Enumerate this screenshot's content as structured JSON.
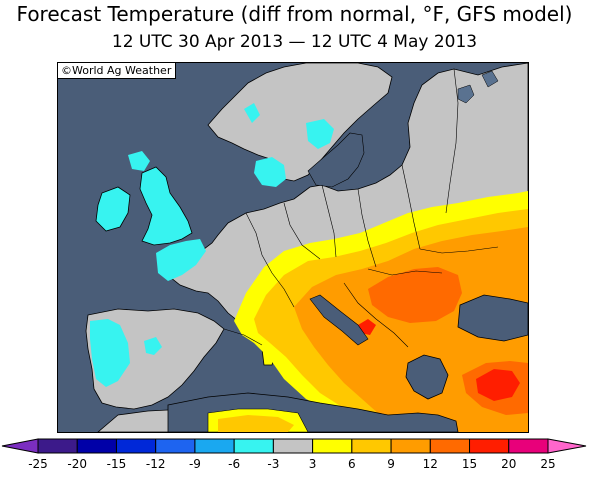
{
  "header": {
    "title": "Forecast Temperature (diff from normal, °F, GFS model)",
    "subtitle": "12 UTC 30 Apr 2013 — 12 UTC 4 May 2013"
  },
  "map": {
    "credit": "©World Ag Weather",
    "colors": {
      "water": "#4a5d78",
      "lake": "#5a7290",
      "near_normal": "#c4c4c4",
      "cyan_-3_-6": "#37f3f0",
      "yellow_3_6": "#ffff00",
      "gold_6_9": "#ffc800",
      "orange_9_12": "#ff9c00",
      "deep_orange_12_15": "#ff6a00",
      "red_15_20": "#ff1e00"
    }
  },
  "legend": {
    "ticks": [
      "-25",
      "-20",
      "-15",
      "-12",
      "-9",
      "-6",
      "-3",
      "3",
      "6",
      "9",
      "12",
      "15",
      "20",
      "25"
    ],
    "colors": [
      "#3c1a8a",
      "#0000a8",
      "#0028d8",
      "#1e64f0",
      "#1aa8f0",
      "#37f3f0",
      "#c4c4c4",
      "#ffff00",
      "#ffc800",
      "#ff9c00",
      "#ff6a00",
      "#ff1e00",
      "#e8007a"
    ],
    "low_arrow_color": "#7b2ec0",
    "high_arrow_color": "#ff66cc"
  }
}
